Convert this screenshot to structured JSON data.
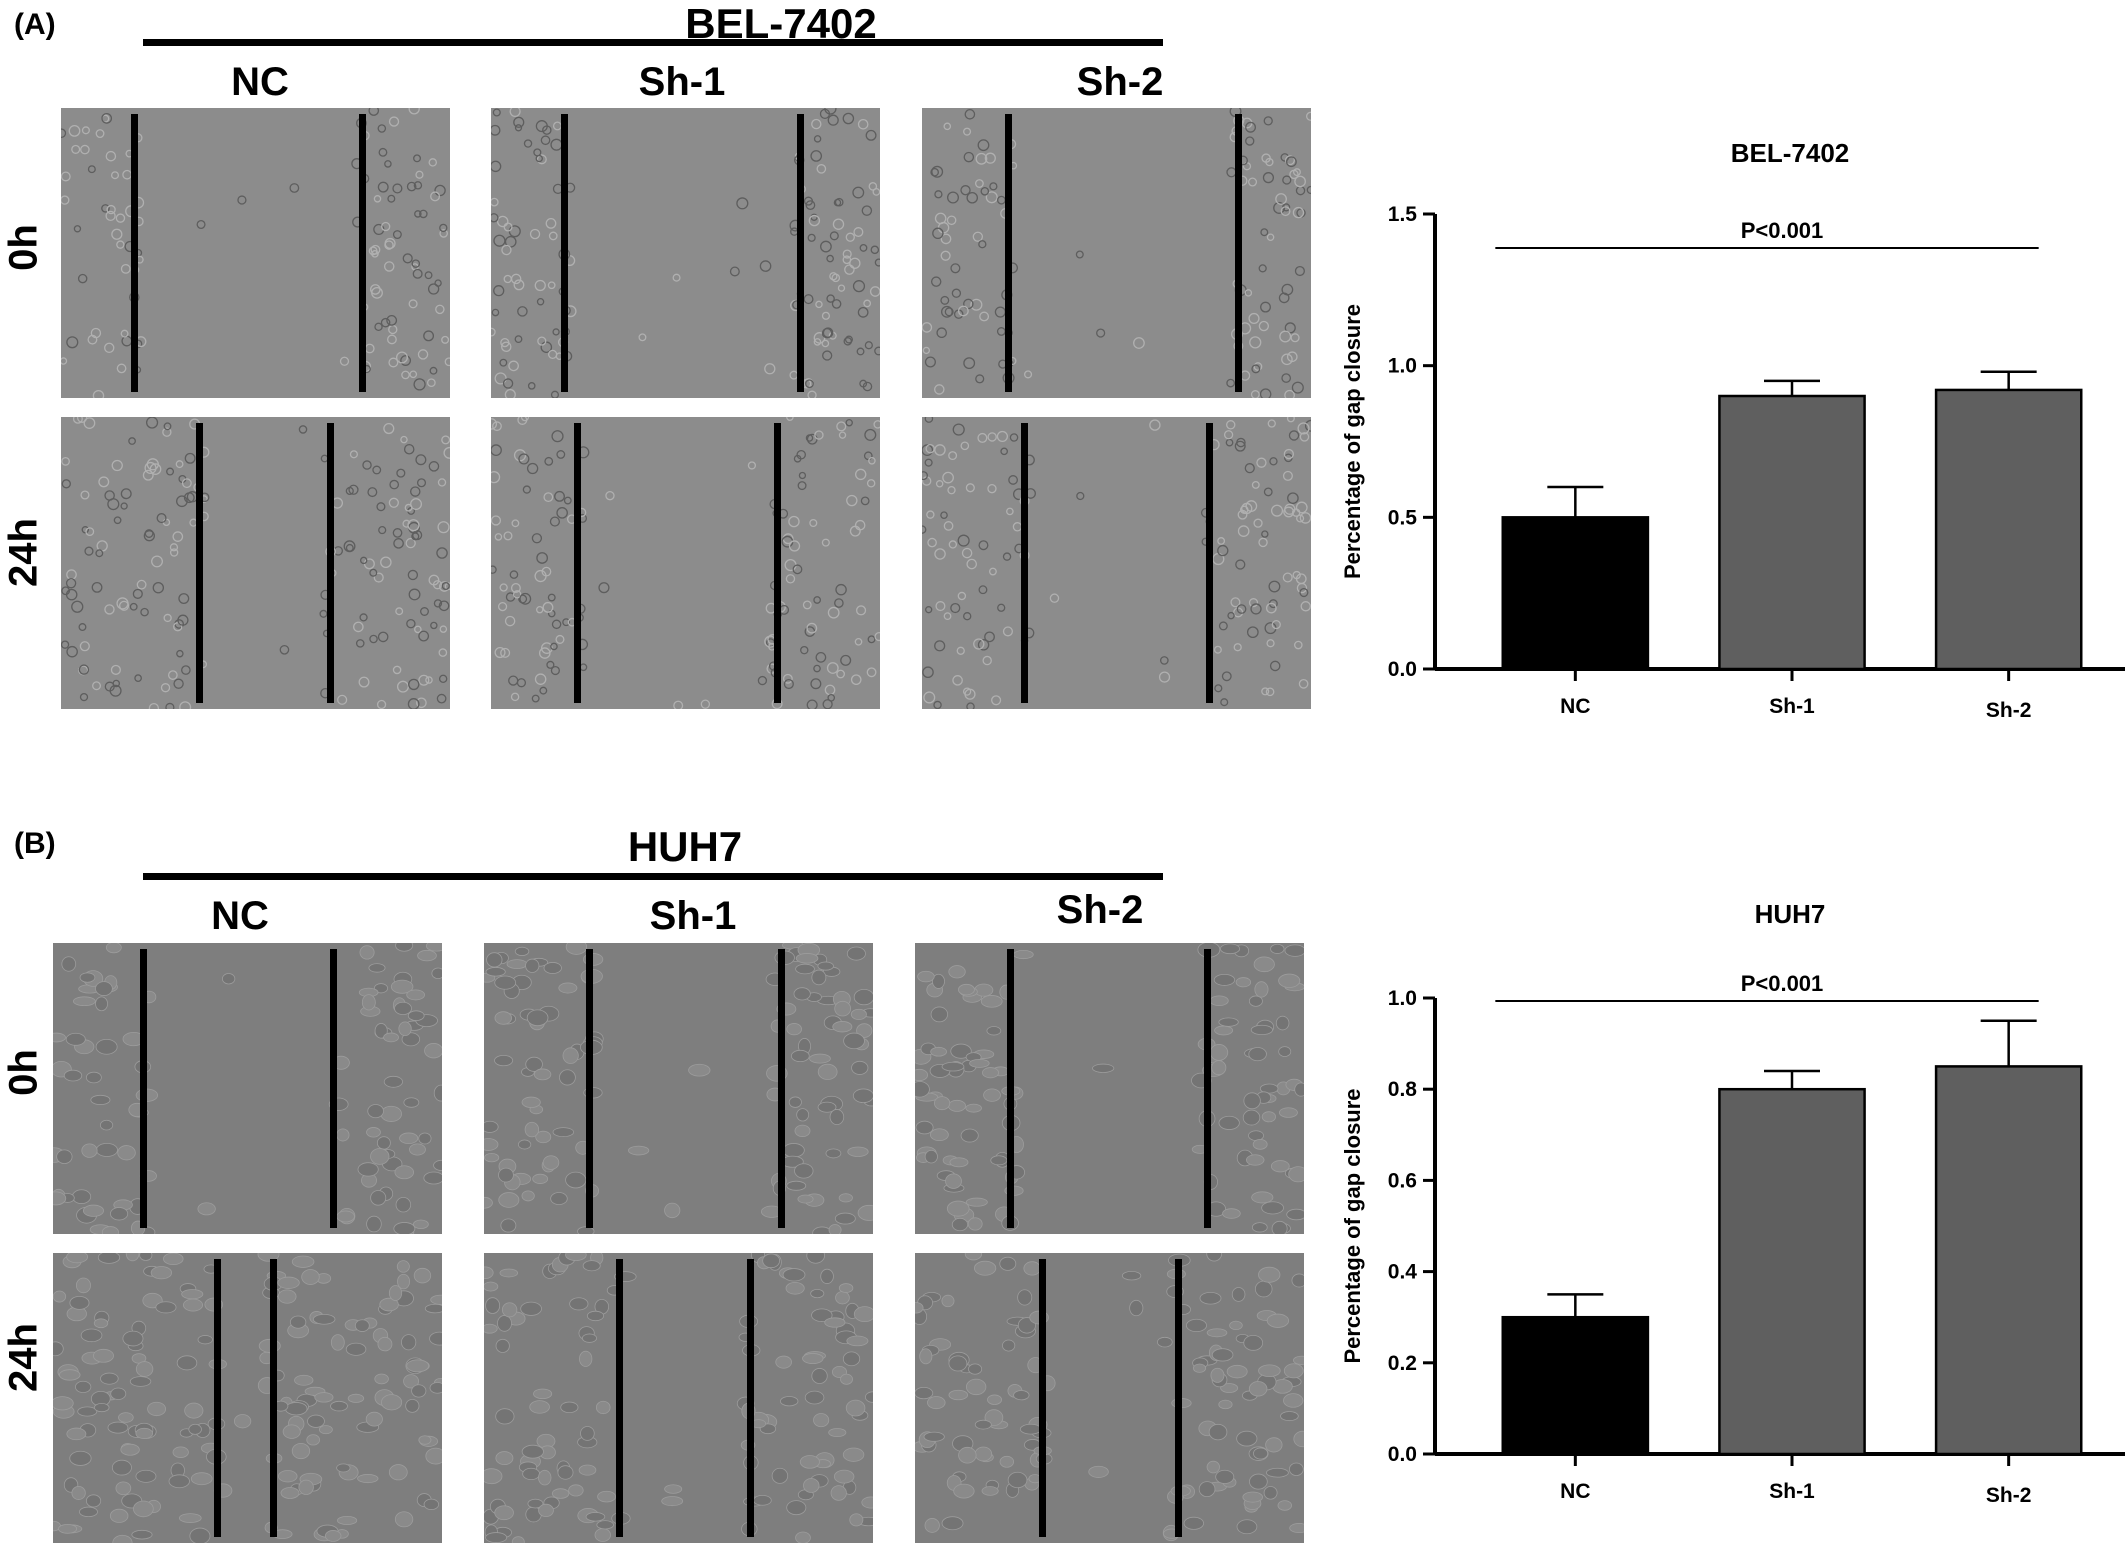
{
  "panels": [
    {
      "letter": "(A)",
      "cell_line": "BEL-7402",
      "conditions": [
        "NC",
        "Sh-1",
        "Sh-2"
      ],
      "timepoints": [
        "0h",
        "24h"
      ],
      "image_style": {
        "background": "#8c8c8c",
        "texture": "rounded-cells"
      },
      "chart_data": {
        "type": "bar",
        "title": "BEL-7402",
        "ylabel": "Percentage of gap closure",
        "xlabel": "",
        "categories": [
          "NC",
          "Sh-1",
          "Sh-2"
        ],
        "values": [
          0.5,
          0.9,
          0.92
        ],
        "errors": [
          0.1,
          0.05,
          0.06
        ],
        "bar_colors": [
          "#000000",
          "#5f5f5f",
          "#5f5f5f"
        ],
        "ylim": [
          0,
          1.5
        ],
        "yticks": [
          "0.0",
          "0.5",
          "1.0",
          "1.5"
        ],
        "ytick_values": [
          0,
          0.5,
          1.0,
          1.5
        ],
        "annotation": "P<0.001",
        "grid": false,
        "legend": "none"
      }
    },
    {
      "letter": "(B)",
      "cell_line": "HUH7",
      "conditions": [
        "NC",
        "Sh-1",
        "Sh-2"
      ],
      "timepoints": [
        "0h",
        "24h"
      ],
      "image_style": {
        "background": "#7e7e7e",
        "texture": "flat-epithelial"
      },
      "chart_data": {
        "type": "bar",
        "title": "HUH7",
        "ylabel": "Percentage of gap closure",
        "xlabel": "",
        "categories": [
          "NC",
          "Sh-1",
          "Sh-2"
        ],
        "values": [
          0.3,
          0.8,
          0.85
        ],
        "errors": [
          0.05,
          0.04,
          0.1
        ],
        "bar_colors": [
          "#000000",
          "#5f5f5f",
          "#5f5f5f"
        ],
        "ylim": [
          0,
          1.0
        ],
        "yticks": [
          "0.0",
          "0.2",
          "0.4",
          "0.6",
          "0.8",
          "1.0"
        ],
        "ytick_values": [
          0,
          0.2,
          0.4,
          0.6,
          0.8,
          1.0
        ],
        "annotation": "P<0.001",
        "grid": false,
        "legend": "none"
      }
    }
  ]
}
